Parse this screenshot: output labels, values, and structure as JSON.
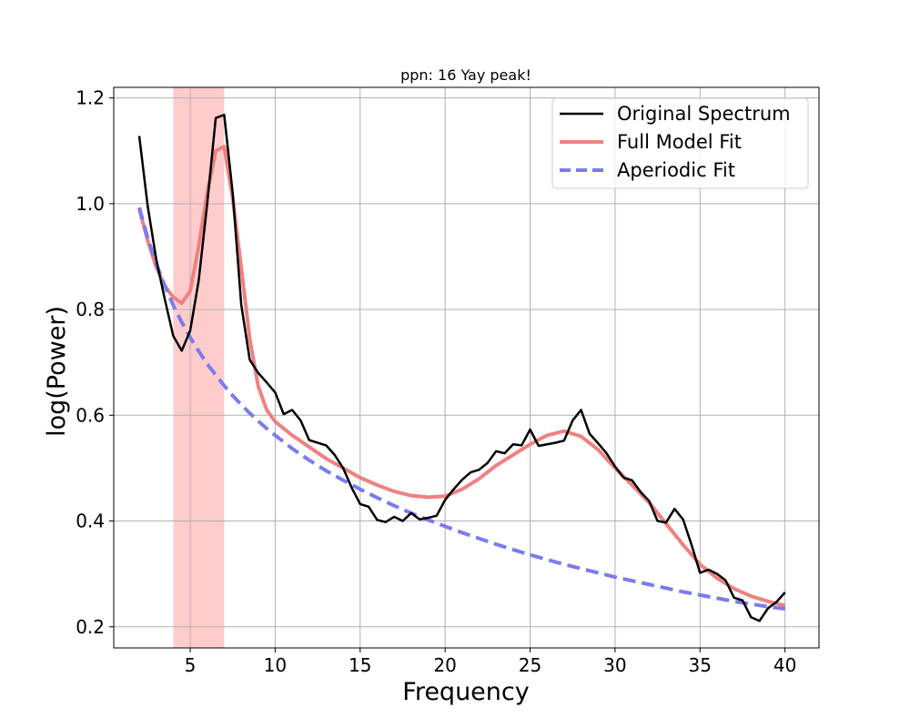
{
  "chart_data": {
    "type": "line",
    "title": "ppn: 16 Yay peak!",
    "xlabel": "Frequency",
    "ylabel": "log(Power)",
    "xlim": [
      0.5,
      42
    ],
    "ylim": [
      0.16,
      1.22
    ],
    "xticks": [
      5,
      10,
      15,
      20,
      25,
      30,
      35,
      40
    ],
    "yticks": [
      0.2,
      0.4,
      0.6,
      0.8,
      1.0,
      1.2
    ],
    "xtick_labels": [
      "5",
      "10",
      "15",
      "20",
      "25",
      "30",
      "35",
      "40"
    ],
    "ytick_labels": [
      "0.2",
      "0.4",
      "0.6",
      "0.8",
      "1.0",
      "1.2"
    ],
    "grid": true,
    "legend_position": "top-right",
    "shaded_band": {
      "x_start": 4,
      "x_end": 7,
      "color": "#ffcccc"
    },
    "series": [
      {
        "name": "Original Spectrum",
        "color": "#000000",
        "style": "solid",
        "x": [
          2.0,
          2.5,
          3.0,
          3.5,
          4.0,
          4.5,
          5.0,
          5.5,
          6.0,
          6.5,
          7.0,
          7.5,
          8.0,
          8.5,
          9.0,
          9.5,
          10.0,
          10.5,
          11.0,
          11.5,
          12.0,
          12.5,
          13.0,
          13.5,
          14.0,
          14.5,
          15.0,
          15.5,
          16.0,
          16.5,
          17.0,
          17.5,
          18.0,
          18.5,
          19.0,
          19.5,
          20.0,
          20.5,
          21.0,
          21.5,
          22.0,
          22.5,
          23.0,
          23.5,
          24.0,
          24.5,
          25.0,
          25.5,
          26.0,
          26.5,
          27.0,
          27.5,
          28.0,
          28.5,
          29.0,
          29.5,
          30.0,
          30.5,
          31.0,
          31.5,
          32.0,
          32.5,
          33.0,
          33.5,
          34.0,
          34.5,
          35.0,
          35.5,
          36.0,
          36.5,
          37.0,
          37.5,
          38.0,
          38.5,
          39.0,
          39.5,
          40.0
        ],
        "values": [
          1.128,
          0.995,
          0.895,
          0.82,
          0.75,
          0.722,
          0.76,
          0.855,
          1.0,
          1.162,
          1.168,
          1.02,
          0.81,
          0.705,
          0.68,
          0.662,
          0.643,
          0.602,
          0.61,
          0.59,
          0.553,
          0.548,
          0.543,
          0.525,
          0.5,
          0.463,
          0.432,
          0.427,
          0.402,
          0.398,
          0.408,
          0.4,
          0.415,
          0.403,
          0.406,
          0.41,
          0.44,
          0.46,
          0.478,
          0.492,
          0.497,
          0.51,
          0.532,
          0.528,
          0.545,
          0.543,
          0.573,
          0.542,
          0.545,
          0.548,
          0.552,
          0.59,
          0.61,
          0.565,
          0.547,
          0.528,
          0.503,
          0.482,
          0.477,
          0.455,
          0.438,
          0.4,
          0.397,
          0.423,
          0.403,
          0.355,
          0.302,
          0.308,
          0.3,
          0.288,
          0.255,
          0.25,
          0.218,
          0.211,
          0.235,
          0.247,
          0.265
        ]
      },
      {
        "name": "Full Model Fit",
        "color": "#f08080",
        "style": "solid",
        "x": [
          2.0,
          2.5,
          3.0,
          3.5,
          4.0,
          4.5,
          5.0,
          5.5,
          6.0,
          6.5,
          7.0,
          7.5,
          8.0,
          8.5,
          9.0,
          9.5,
          10.0,
          11.0,
          12.0,
          13.0,
          14.0,
          15.0,
          16.0,
          17.0,
          18.0,
          19.0,
          20.0,
          21.0,
          22.0,
          23.0,
          24.0,
          25.0,
          26.0,
          27.0,
          28.0,
          29.0,
          30.0,
          31.0,
          32.0,
          33.0,
          34.0,
          35.0,
          36.0,
          37.0,
          38.0,
          39.0,
          40.0
        ],
        "values": [
          0.99,
          0.93,
          0.88,
          0.845,
          0.823,
          0.812,
          0.835,
          0.92,
          1.02,
          1.1,
          1.108,
          1.01,
          0.88,
          0.745,
          0.655,
          0.61,
          0.588,
          0.562,
          0.54,
          0.518,
          0.5,
          0.482,
          0.468,
          0.456,
          0.448,
          0.445,
          0.447,
          0.46,
          0.48,
          0.505,
          0.525,
          0.545,
          0.562,
          0.57,
          0.56,
          0.535,
          0.5,
          0.468,
          0.435,
          0.395,
          0.355,
          0.318,
          0.292,
          0.272,
          0.258,
          0.248,
          0.24
        ]
      },
      {
        "name": "Aperiodic Fit",
        "color": "#7b7bf0",
        "style": "dashed",
        "x": [
          2.0,
          2.5,
          3.0,
          3.5,
          4.0,
          4.5,
          5.0,
          5.5,
          6.0,
          6.5,
          7.0,
          7.5,
          8.0,
          8.5,
          9.0,
          9.5,
          10.0,
          11.0,
          12.0,
          13.0,
          14.0,
          15.0,
          16.0,
          17.0,
          18.0,
          19.0,
          20.0,
          21.0,
          22.0,
          23.0,
          24.0,
          25.0,
          26.0,
          27.0,
          28.0,
          29.0,
          30.0,
          31.0,
          32.0,
          33.0,
          34.0,
          35.0,
          36.0,
          37.0,
          38.0,
          39.0,
          40.0
        ],
        "values": [
          0.993,
          0.935,
          0.886,
          0.845,
          0.808,
          0.776,
          0.747,
          0.721,
          0.697,
          0.676,
          0.656,
          0.637,
          0.62,
          0.604,
          0.589,
          0.575,
          0.562,
          0.537,
          0.515,
          0.495,
          0.477,
          0.46,
          0.444,
          0.429,
          0.415,
          0.402,
          0.39,
          0.378,
          0.367,
          0.356,
          0.346,
          0.336,
          0.327,
          0.318,
          0.31,
          0.302,
          0.294,
          0.287,
          0.28,
          0.273,
          0.266,
          0.26,
          0.254,
          0.248,
          0.243,
          0.238,
          0.234
        ]
      }
    ]
  }
}
